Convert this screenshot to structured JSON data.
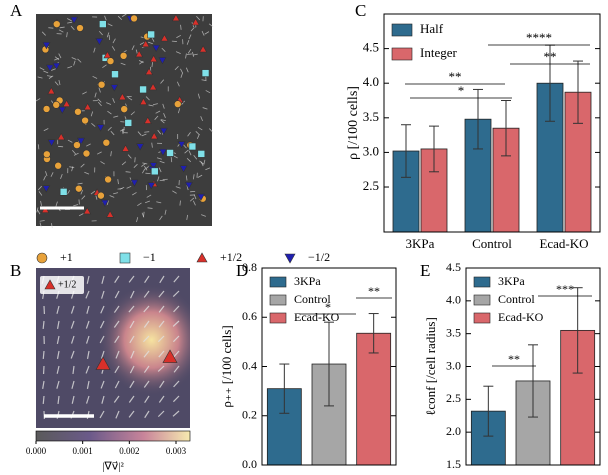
{
  "panels": {
    "A": {
      "label": "A",
      "legend": [
        "+1",
        "−1",
        "+1/2",
        "−1/2"
      ]
    },
    "B": {
      "label": "B",
      "marker_label": "+1/2",
      "colorbar": {
        "label": "|∇v⃗|²",
        "lim": [
          0,
          0.0033
        ],
        "ticks": [
          {
            "value": 0,
            "label": "0.000"
          },
          0.001,
          0.002,
          0.003
        ]
      }
    }
  },
  "chart_data": [
    {
      "panel": "C",
      "type": "bar",
      "ylabel": "ρ [/100 cells]",
      "categories": [
        "3KPa",
        "Control",
        "Ecad-KO"
      ],
      "series": [
        {
          "name": "Half",
          "color": "#2e6b8e",
          "values": [
            3.02,
            3.48,
            4.0
          ],
          "errors": [
            0.38,
            0.43,
            0.55
          ]
        },
        {
          "name": "Integer",
          "color": "#d9676b",
          "values": [
            3.05,
            3.35,
            3.87
          ],
          "errors": [
            0.33,
            0.4,
            0.45
          ]
        }
      ],
      "ylim": [
        1.85,
        5.0
      ],
      "yticks": [
        2.5,
        {
          "value": 3,
          "label": "3.0"
        },
        3.5,
        {
          "value": 4,
          "label": "4.0"
        },
        4.5
      ],
      "annotations": [
        "**",
        "*",
        "****",
        "**"
      ],
      "legend": "upper left"
    },
    {
      "panel": "D",
      "type": "bar",
      "ylabel": "ρ₊₊ [/100 cells]",
      "series": [
        {
          "name": "3KPa",
          "color": "#2e6b8e",
          "values": [
            0.31
          ],
          "errors": [
            0.1
          ]
        },
        {
          "name": "Control",
          "color": "#a6a6a6",
          "values": [
            0.41
          ],
          "errors": [
            0.17
          ]
        },
        {
          "name": "Ecad-KO",
          "color": "#d9676b",
          "values": [
            0.535
          ],
          "errors": [
            0.08
          ]
        }
      ],
      "ylim": [
        0,
        0.8
      ],
      "yticks": [
        {
          "value": 0,
          "label": "0.0"
        },
        0.2,
        0.4,
        0.6,
        0.8
      ],
      "annotations": [
        "*",
        "**"
      ],
      "legend": "upper left"
    },
    {
      "panel": "E",
      "type": "bar",
      "ylabel": "ℓconf [/cell radius]",
      "series": [
        {
          "name": "3KPa",
          "color": "#2e6b8e",
          "values": [
            2.32
          ],
          "errors": [
            0.38
          ]
        },
        {
          "name": "Control",
          "color": "#a6a6a6",
          "values": [
            2.78
          ],
          "errors": [
            0.55
          ]
        },
        {
          "name": "Ecad-KO",
          "color": "#d9676b",
          "values": [
            3.55
          ],
          "errors": [
            0.65
          ]
        }
      ],
      "ylim": [
        1.5,
        4.5
      ],
      "yticks": [
        1.5,
        {
          "value": 2,
          "label": "2.0"
        },
        2.5,
        {
          "value": 3,
          "label": "3.0"
        },
        3.5,
        {
          "value": 4,
          "label": "4.0"
        },
        4.5
      ],
      "annotations": [
        "**",
        "***"
      ],
      "legend": "upper left"
    }
  ]
}
